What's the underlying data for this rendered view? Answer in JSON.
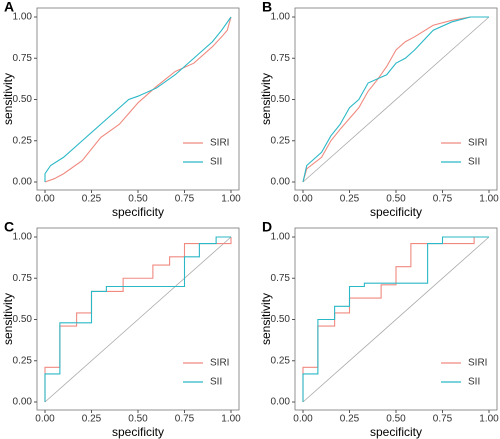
{
  "chart_data": [
    {
      "type": "line",
      "panel_label": "A",
      "x_label": "specificity",
      "y_label": "sensitivity",
      "xlim": [
        0,
        1
      ],
      "ylim": [
        0,
        1
      ],
      "xticks": [
        {
          "value": 0,
          "label": "0.00"
        },
        {
          "value": 0.25,
          "label": "0.25"
        },
        {
          "value": 0.5,
          "label": "0.50"
        },
        {
          "value": 0.75,
          "label": "0.75"
        },
        {
          "value": 1,
          "label": "1.00"
        }
      ],
      "yticks": [
        {
          "value": 0,
          "label": "0.00"
        },
        {
          "value": 0.25,
          "label": "0.25"
        },
        {
          "value": 0.5,
          "label": "0.50"
        },
        {
          "value": 0.75,
          "label": "0.75"
        },
        {
          "value": 1,
          "label": "1.00"
        }
      ],
      "diagonal": false,
      "legend": "lower right",
      "series": [
        {
          "name": "SIRI",
          "color": "#f08a80",
          "x": [
            0,
            0.05,
            0.1,
            0.2,
            0.3,
            0.4,
            0.5,
            0.6,
            0.7,
            0.8,
            0.9,
            0.95,
            0.98,
            1
          ],
          "values": [
            0,
            0.02,
            0.05,
            0.13,
            0.27,
            0.35,
            0.48,
            0.58,
            0.67,
            0.72,
            0.82,
            0.88,
            0.92,
            1
          ]
        },
        {
          "name": "SII",
          "color": "#2bb8c6",
          "x": [
            0,
            0,
            0.03,
            0.1,
            0.2,
            0.3,
            0.4,
            0.45,
            0.5,
            0.6,
            0.7,
            0.8,
            0.9,
            0.95,
            1
          ],
          "values": [
            0,
            0.05,
            0.1,
            0.15,
            0.25,
            0.35,
            0.45,
            0.5,
            0.52,
            0.57,
            0.65,
            0.75,
            0.85,
            0.92,
            1
          ]
        }
      ]
    },
    {
      "type": "line",
      "panel_label": "B",
      "x_label": "specificity",
      "y_label": "sensitivity",
      "xlim": [
        0,
        1
      ],
      "ylim": [
        0,
        1
      ],
      "xticks": [
        {
          "value": 0,
          "label": "0.00"
        },
        {
          "value": 0.25,
          "label": "0.25"
        },
        {
          "value": 0.5,
          "label": "0.50"
        },
        {
          "value": 0.75,
          "label": "0.75"
        },
        {
          "value": 1,
          "label": "1.00"
        }
      ],
      "yticks": [
        {
          "value": 0,
          "label": "0.00"
        },
        {
          "value": 0.25,
          "label": "0.25"
        },
        {
          "value": 0.5,
          "label": "0.50"
        },
        {
          "value": 0.75,
          "label": "0.75"
        },
        {
          "value": 1,
          "label": "1.00"
        }
      ],
      "diagonal": true,
      "legend": "lower right",
      "series": [
        {
          "name": "SIRI",
          "color": "#f08a80",
          "x": [
            0,
            0.02,
            0.1,
            0.15,
            0.2,
            0.3,
            0.35,
            0.4,
            0.45,
            0.5,
            0.55,
            0.6,
            0.7,
            0.8,
            0.9,
            1
          ],
          "values": [
            0,
            0.08,
            0.15,
            0.25,
            0.32,
            0.45,
            0.55,
            0.62,
            0.7,
            0.8,
            0.85,
            0.88,
            0.95,
            0.98,
            1,
            1
          ]
        },
        {
          "name": "SII",
          "color": "#2bb8c6",
          "x": [
            0,
            0.02,
            0.1,
            0.15,
            0.2,
            0.25,
            0.3,
            0.35,
            0.45,
            0.5,
            0.55,
            0.6,
            0.7,
            0.8,
            0.9,
            1
          ],
          "values": [
            0,
            0.1,
            0.18,
            0.28,
            0.35,
            0.45,
            0.5,
            0.6,
            0.65,
            0.72,
            0.75,
            0.8,
            0.92,
            0.97,
            1,
            1
          ]
        }
      ]
    },
    {
      "type": "line",
      "panel_label": "C",
      "x_label": "specificity",
      "y_label": "sensitivity",
      "xlim": [
        0,
        1
      ],
      "ylim": [
        0,
        1
      ],
      "xticks": [
        {
          "value": 0,
          "label": "0.00"
        },
        {
          "value": 0.25,
          "label": "0.25"
        },
        {
          "value": 0.5,
          "label": "0.50"
        },
        {
          "value": 0.75,
          "label": "0.75"
        },
        {
          "value": 1,
          "label": "1.00"
        }
      ],
      "yticks": [
        {
          "value": 0,
          "label": "0.00"
        },
        {
          "value": 0.25,
          "label": "0.25"
        },
        {
          "value": 0.5,
          "label": "0.50"
        },
        {
          "value": 0.75,
          "label": "0.75"
        },
        {
          "value": 1,
          "label": "1.00"
        }
      ],
      "diagonal": true,
      "legend": "lower right",
      "series": [
        {
          "name": "SIRI",
          "color": "#f08a80",
          "x": [
            0,
            0,
            0.08,
            0.08,
            0.17,
            0.17,
            0.25,
            0.25,
            0.42,
            0.42,
            0.58,
            0.58,
            0.67,
            0.67,
            0.75,
            0.75,
            1,
            1
          ],
          "values": [
            0,
            0.21,
            0.21,
            0.46,
            0.46,
            0.54,
            0.54,
            0.67,
            0.67,
            0.75,
            0.75,
            0.83,
            0.83,
            0.88,
            0.88,
            0.96,
            0.96,
            1
          ]
        },
        {
          "name": "SII",
          "color": "#2bb8c6",
          "x": [
            0,
            0,
            0.08,
            0.08,
            0.25,
            0.25,
            0.33,
            0.33,
            0.75,
            0.75,
            0.83,
            0.83,
            0.92,
            0.92,
            1
          ],
          "values": [
            0,
            0.17,
            0.17,
            0.48,
            0.48,
            0.67,
            0.67,
            0.7,
            0.7,
            0.88,
            0.88,
            0.96,
            0.96,
            1,
            1
          ]
        }
      ]
    },
    {
      "type": "line",
      "panel_label": "D",
      "x_label": "specificity",
      "y_label": "sensitivity",
      "xlim": [
        0,
        1
      ],
      "ylim": [
        0,
        1
      ],
      "xticks": [
        {
          "value": 0,
          "label": "0.00"
        },
        {
          "value": 0.25,
          "label": "0.25"
        },
        {
          "value": 0.5,
          "label": "0.50"
        },
        {
          "value": 0.75,
          "label": "0.75"
        },
        {
          "value": 1,
          "label": "1.00"
        }
      ],
      "yticks": [
        {
          "value": 0,
          "label": "0.00"
        },
        {
          "value": 0.25,
          "label": "0.25"
        },
        {
          "value": 0.5,
          "label": "0.50"
        },
        {
          "value": 0.75,
          "label": "0.75"
        },
        {
          "value": 1,
          "label": "1.00"
        }
      ],
      "diagonal": true,
      "legend": "lower right",
      "series": [
        {
          "name": "SIRI",
          "color": "#f08a80",
          "x": [
            0,
            0,
            0.08,
            0.08,
            0.17,
            0.17,
            0.25,
            0.25,
            0.42,
            0.42,
            0.5,
            0.5,
            0.58,
            0.58,
            0.92,
            0.92,
            1
          ],
          "values": [
            0,
            0.21,
            0.21,
            0.46,
            0.46,
            0.54,
            0.54,
            0.63,
            0.63,
            0.71,
            0.71,
            0.82,
            0.82,
            0.96,
            0.96,
            1,
            1
          ]
        },
        {
          "name": "SII",
          "color": "#2bb8c6",
          "x": [
            0,
            0,
            0.08,
            0.08,
            0.17,
            0.17,
            0.25,
            0.25,
            0.33,
            0.33,
            0.67,
            0.67,
            0.75,
            0.75,
            1
          ],
          "values": [
            0,
            0.17,
            0.17,
            0.5,
            0.5,
            0.58,
            0.58,
            0.7,
            0.7,
            0.72,
            0.72,
            0.96,
            0.96,
            1,
            1
          ]
        }
      ]
    }
  ]
}
